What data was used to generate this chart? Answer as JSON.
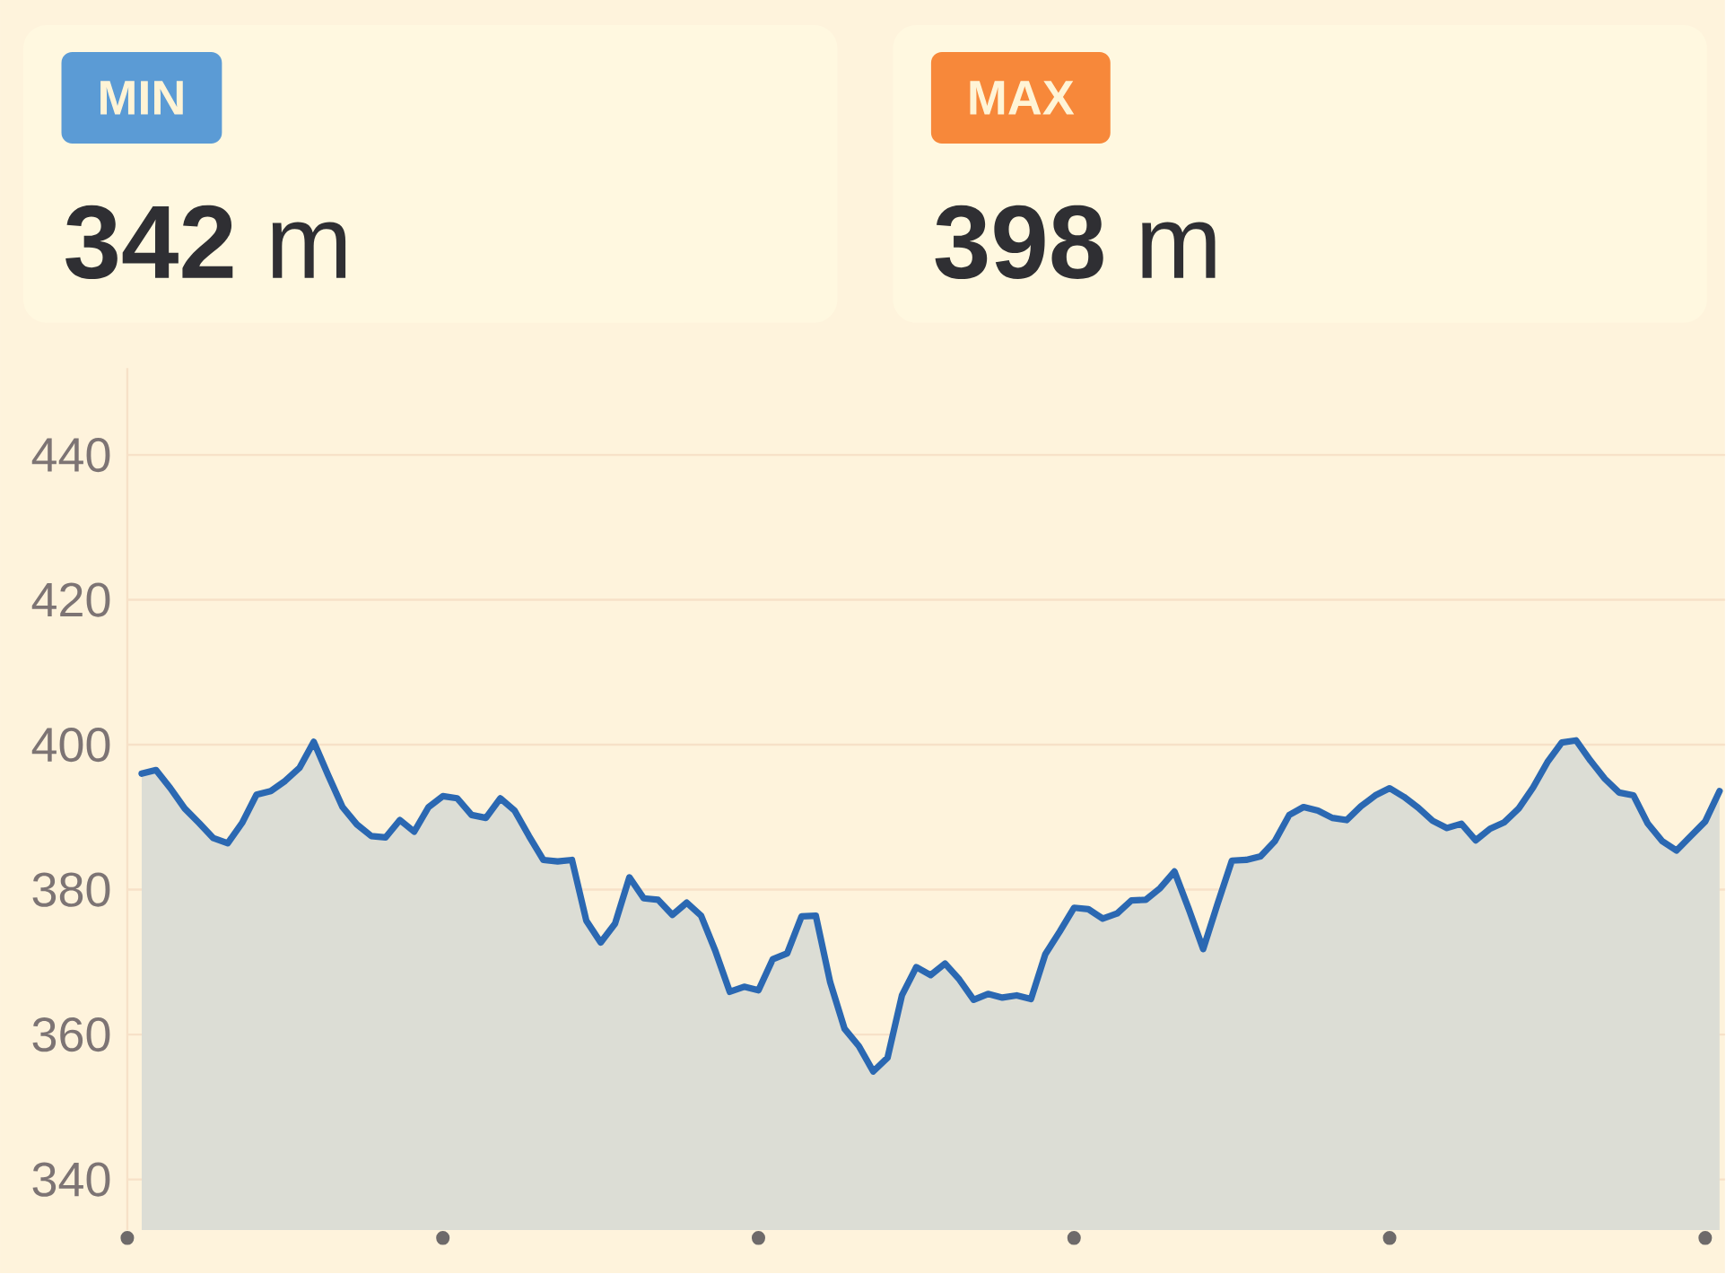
{
  "chart_data": [
    {
      "type": "other",
      "annotations": [
        "MIN",
        "**342** m",
        "MAX",
        "**398** m"
      ]
    },
    {
      "type": "area",
      "categories": [
        null,
        null,
        null,
        null,
        null,
        null,
        null,
        null,
        null,
        null,
        null,
        null,
        null,
        null,
        null,
        null,
        null,
        null,
        null,
        null,
        null,
        null,
        null,
        null,
        null,
        null,
        null,
        null,
        null,
        null,
        null,
        null,
        null,
        null,
        null,
        null,
        null,
        null,
        null,
        null,
        null,
        null,
        null,
        null,
        null,
        null,
        null,
        null,
        null,
        null,
        null,
        null,
        null,
        null,
        null,
        null,
        null,
        null,
        null,
        null,
        null,
        null,
        null,
        null,
        null,
        null,
        null,
        null,
        null,
        null,
        null,
        null,
        null,
        null,
        null,
        null,
        null,
        null,
        null,
        null,
        null,
        null,
        null,
        null,
        null,
        null,
        null,
        null,
        null,
        null,
        null,
        null,
        null,
        null,
        null,
        null,
        null,
        null,
        null,
        null,
        null,
        null,
        null,
        null,
        null,
        null,
        null,
        null,
        null,
        null,
        null
      ],
      "values": [
        396.0,
        396.5,
        394.0,
        391.2,
        389.2,
        387.1,
        386.4,
        389.2,
        393.1,
        393.6,
        395.0,
        396.8,
        400.4,
        395.8,
        391.4,
        389.0,
        387.4,
        387.2,
        389.6,
        388.0,
        391.4,
        392.9,
        392.6,
        390.3,
        389.9,
        392.6,
        390.9,
        387.4,
        384.1,
        383.9,
        384.1,
        375.7,
        372.7,
        375.3,
        381.7,
        378.8,
        378.6,
        376.5,
        378.2,
        376.4,
        371.5,
        365.9,
        366.6,
        366.1,
        370.4,
        371.2,
        376.3,
        376.4,
        367.2,
        360.8,
        358.4,
        354.9,
        356.8,
        365.4,
        369.3,
        368.2,
        369.8,
        367.6,
        364.8,
        365.6,
        365.1,
        365.4,
        364.9,
        371.1,
        374.2,
        377.5,
        377.3,
        376.0,
        376.7,
        378.5,
        378.6,
        380.2,
        382.5,
        377.3,
        371.8,
        378.0,
        384.0,
        384.1,
        384.6,
        386.7,
        390.3,
        391.4,
        390.9,
        389.9,
        389.6,
        391.5,
        393.0,
        394.0,
        392.8,
        391.3,
        389.5,
        388.5,
        389.1,
        386.8,
        388.4,
        389.3,
        391.2,
        394.1,
        397.6,
        400.3,
        400.6,
        397.8,
        395.3,
        393.4,
        393.0,
        389.1,
        386.7,
        385.4,
        387.4,
        389.4,
        393.6
      ],
      "color": "#2b68b2",
      "ylim": [
        333,
        452
      ],
      "yticks": [
        340,
        360,
        380,
        400,
        420,
        440
      ],
      "grid": "y",
      "tick_labels": "y"
    }
  ]
}
